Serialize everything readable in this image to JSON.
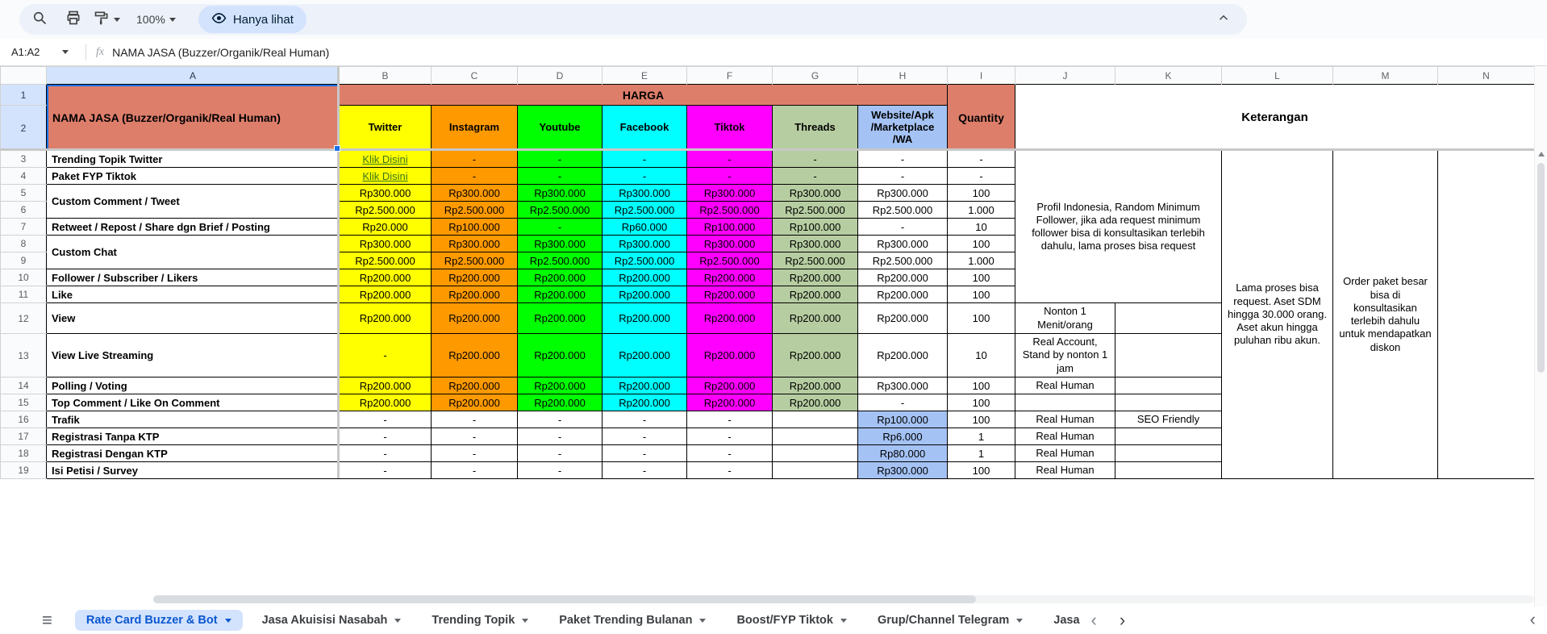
{
  "toolbar": {
    "zoom_label": "100%",
    "view_badge": "Hanya lihat"
  },
  "formula_bar": {
    "name_box": "A1:A2",
    "formula": "NAMA JASA (Buzzer/Organik/Real Human)"
  },
  "selection": {
    "columns": [
      "A"
    ],
    "rows": [
      1,
      2
    ]
  },
  "sheet": {
    "column_letters": [
      "A",
      "B",
      "C",
      "D",
      "E",
      "F",
      "G",
      "H",
      "I",
      "J",
      "K",
      "L",
      "M",
      "N"
    ],
    "palette": {
      "salmon": "#dd7e6b",
      "yellow": "#ffff00",
      "orange": "#ff9900",
      "green": "#00ff00",
      "cyan": "#00ffff",
      "magenta": "#ff00ff",
      "sage": "#b6cda1",
      "lightblue": "#a4c2f4",
      "white": "#ffffff"
    },
    "header": {
      "nama_jasa": "NAMA JASA (Buzzer/Organik/Real Human)",
      "harga": "HARGA",
      "quantity": "Quantity",
      "keterangan": "Keterangan",
      "platforms": [
        {
          "label": "Twitter",
          "color": "yellow"
        },
        {
          "label": "Instagram",
          "color": "orange"
        },
        {
          "label": "Youtube",
          "color": "green"
        },
        {
          "label": "Facebook",
          "color": "cyan"
        },
        {
          "label": "Tiktok",
          "color": "magenta"
        },
        {
          "label": "Threads",
          "color": "sage"
        },
        {
          "label": "Website/Apk\n/Marketplace\n/WA",
          "color": "lightblue"
        }
      ]
    },
    "rows": [
      {
        "n": 3,
        "service": "Trending Topik Twitter",
        "rowspan": 1,
        "tint": true,
        "link": true,
        "values": [
          "Klik Disini",
          "-",
          "-",
          "-",
          "-",
          "-",
          "-",
          "-"
        ],
        "colors": [
          "yellow",
          "orange",
          "green",
          "cyan",
          "magenta",
          "sage",
          "white",
          "white"
        ]
      },
      {
        "n": 4,
        "service": "Paket FYP Tiktok",
        "rowspan": 1,
        "tint": true,
        "link": true,
        "values": [
          "Klik Disini",
          "-",
          "-",
          "-",
          "-",
          "-",
          "-",
          "-"
        ],
        "colors": [
          "yellow",
          "orange",
          "green",
          "cyan",
          "magenta",
          "sage",
          "white",
          "white"
        ]
      },
      {
        "n": 5,
        "service": "Custom Comment / Tweet",
        "rowspan": 2,
        "values": [
          "Rp300.000",
          "Rp300.000",
          "Rp300.000",
          "Rp300.000",
          "Rp300.000",
          "Rp300.000",
          "Rp300.000",
          "100"
        ],
        "colors": [
          "yellow",
          "orange",
          "green",
          "cyan",
          "magenta",
          "sage",
          "white",
          "white"
        ]
      },
      {
        "n": 6,
        "service": null,
        "values": [
          "Rp2.500.000",
          "Rp2.500.000",
          "Rp2.500.000",
          "Rp2.500.000",
          "Rp2.500.000",
          "Rp2.500.000",
          "Rp2.500.000",
          "1.000"
        ],
        "colors": [
          "yellow",
          "orange",
          "green",
          "cyan",
          "magenta",
          "sage",
          "white",
          "white"
        ]
      },
      {
        "n": 7,
        "service": "Retweet / Repost / Share dgn Brief / Posting",
        "rowspan": 1,
        "values": [
          "Rp20.000",
          "Rp100.000",
          "-",
          "Rp60.000",
          "Rp100.000",
          "Rp100.000",
          "-",
          "10"
        ],
        "colors": [
          "yellow",
          "orange",
          "green",
          "cyan",
          "magenta",
          "sage",
          "white",
          "white"
        ]
      },
      {
        "n": 8,
        "service": "Custom Chat",
        "rowspan": 2,
        "values": [
          "Rp300.000",
          "Rp300.000",
          "Rp300.000",
          "Rp300.000",
          "Rp300.000",
          "Rp300.000",
          "Rp300.000",
          "100"
        ],
        "colors": [
          "yellow",
          "orange",
          "green",
          "cyan",
          "magenta",
          "sage",
          "white",
          "white"
        ]
      },
      {
        "n": 9,
        "service": null,
        "values": [
          "Rp2.500.000",
          "Rp2.500.000",
          "Rp2.500.000",
          "Rp2.500.000",
          "Rp2.500.000",
          "Rp2.500.000",
          "Rp2.500.000",
          "1.000"
        ],
        "colors": [
          "yellow",
          "orange",
          "green",
          "cyan",
          "magenta",
          "sage",
          "white",
          "white"
        ]
      },
      {
        "n": 10,
        "service": "Follower / Subscriber / Likers",
        "rowspan": 1,
        "values": [
          "Rp200.000",
          "Rp200.000",
          "Rp200.000",
          "Rp200.000",
          "Rp200.000",
          "Rp200.000",
          "Rp200.000",
          "100"
        ],
        "colors": [
          "yellow",
          "orange",
          "green",
          "cyan",
          "magenta",
          "sage",
          "white",
          "white"
        ]
      },
      {
        "n": 11,
        "service": "Like",
        "rowspan": 1,
        "values": [
          "Rp200.000",
          "Rp200.000",
          "Rp200.000",
          "Rp200.000",
          "Rp200.000",
          "Rp200.000",
          "Rp200.000",
          "100"
        ],
        "colors": [
          "yellow",
          "orange",
          "green",
          "cyan",
          "magenta",
          "sage",
          "white",
          "white"
        ]
      },
      {
        "n": 12,
        "service": "View",
        "rowspan": 1,
        "j": "Nonton 1 Menit/orang",
        "k": "",
        "values": [
          "Rp200.000",
          "Rp200.000",
          "Rp200.000",
          "Rp200.000",
          "Rp200.000",
          "Rp200.000",
          "Rp200.000",
          "100"
        ],
        "colors": [
          "yellow",
          "orange",
          "green",
          "cyan",
          "magenta",
          "sage",
          "white",
          "white"
        ]
      },
      {
        "n": 13,
        "service": "View Live Streaming",
        "rowspan": 1,
        "j": "Real Account, Stand by nonton 1 jam",
        "k": "",
        "values": [
          "-",
          "Rp200.000",
          "Rp200.000",
          "Rp200.000",
          "Rp200.000",
          "Rp200.000",
          "Rp200.000",
          "10"
        ],
        "colors": [
          "yellow",
          "orange",
          "green",
          "cyan",
          "magenta",
          "sage",
          "white",
          "white"
        ]
      },
      {
        "n": 14,
        "service": "Polling / Voting",
        "rowspan": 1,
        "j": "Real Human",
        "k": "",
        "values": [
          "Rp200.000",
          "Rp200.000",
          "Rp200.000",
          "Rp200.000",
          "Rp200.000",
          "Rp200.000",
          "Rp300.000",
          "100"
        ],
        "colors": [
          "yellow",
          "orange",
          "green",
          "cyan",
          "magenta",
          "sage",
          "white",
          "white"
        ]
      },
      {
        "n": 15,
        "service": "Top Comment / Like On Comment",
        "rowspan": 1,
        "j": "",
        "k": "",
        "values": [
          "Rp200.000",
          "Rp200.000",
          "Rp200.000",
          "Rp200.000",
          "Rp200.000",
          "Rp200.000",
          "-",
          "100"
        ],
        "colors": [
          "yellow",
          "orange",
          "green",
          "cyan",
          "magenta",
          "sage",
          "white",
          "white"
        ]
      },
      {
        "n": 16,
        "service": "Trafik",
        "rowspan": 1,
        "j": "Real Human",
        "k": "SEO Friendly",
        "values": [
          "-",
          "-",
          "-",
          "-",
          "-",
          "",
          "Rp100.000",
          "100"
        ],
        "colors": [
          "white",
          "white",
          "white",
          "white",
          "white",
          "white",
          "lightblue",
          "white"
        ]
      },
      {
        "n": 17,
        "service": "Registrasi Tanpa KTP",
        "rowspan": 1,
        "j": "Real Human",
        "k": "",
        "values": [
          "-",
          "-",
          "-",
          "-",
          "-",
          "",
          "Rp6.000",
          "1"
        ],
        "colors": [
          "white",
          "white",
          "white",
          "white",
          "white",
          "white",
          "lightblue",
          "white"
        ]
      },
      {
        "n": 18,
        "service": "Registrasi Dengan KTP",
        "rowspan": 1,
        "j": "Real Human",
        "k": "",
        "values": [
          "-",
          "-",
          "-",
          "-",
          "-",
          "",
          "Rp80.000",
          "1"
        ],
        "colors": [
          "white",
          "white",
          "white",
          "white",
          "white",
          "white",
          "lightblue",
          "white"
        ]
      },
      {
        "n": 19,
        "service": "Isi Petisi / Survey",
        "rowspan": 1,
        "j": "Real Human",
        "k": "",
        "values": [
          "-",
          "-",
          "-",
          "-",
          "-",
          "",
          "Rp300.000",
          "100"
        ],
        "colors": [
          "white",
          "white",
          "white",
          "white",
          "white",
          "white",
          "lightblue",
          "white"
        ]
      }
    ],
    "notes": {
      "profile": "Profil Indonesia, Random Minimum Follower, jika ada request minimum follower bisa di konsultasikan terlebih dahulu, lama proses bisa request",
      "process": "Lama proses bisa request. Aset SDM hingga 30.000 orang. Aset akun hingga puluhan ribu akun.",
      "discount": "Order paket besar bisa di konsultasikan terlebih dahulu untuk mendapatkan diskon"
    }
  },
  "tabs": {
    "items": [
      {
        "label": "Rate Card Buzzer & Bot",
        "active": true,
        "caret": true
      },
      {
        "label": "Jasa Akuisisi Nasabah",
        "active": false,
        "caret": true
      },
      {
        "label": "Trending Topik",
        "active": false,
        "caret": true
      },
      {
        "label": "Paket Trending Bulanan",
        "active": false,
        "caret": true
      },
      {
        "label": "Boost/FYP Tiktok",
        "active": false,
        "caret": true
      },
      {
        "label": "Grup/Channel Telegram",
        "active": false,
        "caret": true
      },
      {
        "label": "Jasa",
        "active": false,
        "caret": false,
        "cut": true
      }
    ],
    "nav_prev": "‹",
    "nav_next": "›",
    "far_right": "‹"
  }
}
